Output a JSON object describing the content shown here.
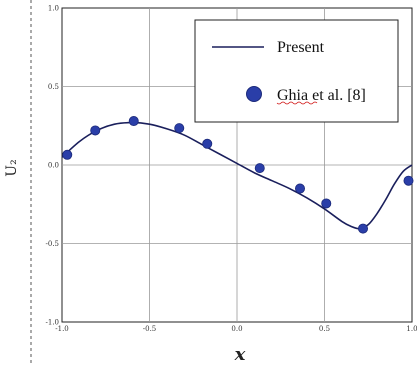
{
  "chart_data": {
    "type": "line",
    "xlabel": "x",
    "ylabel": "U₂",
    "xlim": [
      -1.0,
      1.0
    ],
    "ylim": [
      -1.0,
      1.0
    ],
    "grid": true,
    "legend_position": "top-right",
    "x_ticks": [
      "-1.0",
      "-0.5",
      "0.0",
      "0.5",
      "1.0"
    ],
    "y_ticks": [
      "1.0",
      "0.5",
      "0.0",
      "-0.5",
      "-1.0"
    ],
    "series": [
      {
        "name": "Present",
        "style": "line",
        "color": "#1a1f5c",
        "x": [
          -1.0,
          -0.9,
          -0.8,
          -0.7,
          -0.6,
          -0.5,
          -0.4,
          -0.3,
          -0.2,
          -0.1,
          0.0,
          0.1,
          0.2,
          0.3,
          0.4,
          0.5,
          0.6,
          0.65,
          0.7,
          0.75,
          0.8,
          0.85,
          0.9,
          0.95,
          1.0
        ],
        "y": [
          0.05,
          0.15,
          0.22,
          0.26,
          0.27,
          0.26,
          0.23,
          0.19,
          0.13,
          0.07,
          0.01,
          -0.05,
          -0.1,
          -0.15,
          -0.21,
          -0.28,
          -0.36,
          -0.39,
          -0.405,
          -0.38,
          -0.31,
          -0.22,
          -0.12,
          -0.04,
          0.0
        ]
      },
      {
        "name": "Ghia et al. [8]",
        "style": "marker",
        "color": "#2a3ea8",
        "x": [
          -0.97,
          -0.81,
          -0.59,
          -0.33,
          -0.17,
          0.13,
          0.36,
          0.51,
          0.72,
          0.98
        ],
        "y": [
          0.065,
          0.22,
          0.28,
          0.235,
          0.135,
          -0.02,
          -0.15,
          -0.245,
          -0.405,
          -0.1
        ]
      }
    ]
  }
}
